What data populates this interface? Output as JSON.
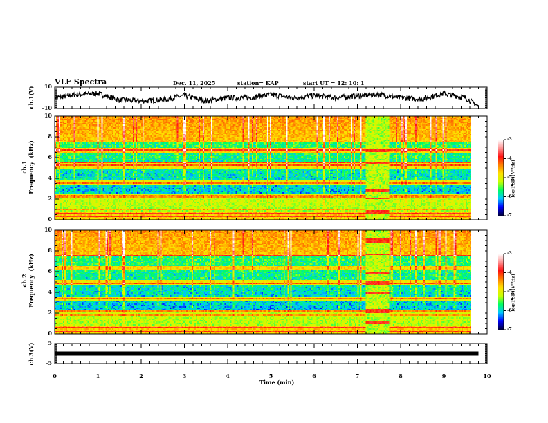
{
  "header": {
    "title": "VLF Spectra",
    "date": "Dec. 11, 2025",
    "station": "station= KAP",
    "start": "start  UT  =   12: 10: 1"
  },
  "chart_data": [
    {
      "type": "line",
      "name": "ch1-waveform",
      "ylabel": "ch.1(V)",
      "ylim": [
        -10,
        10
      ],
      "ytick_labels": [
        "10",
        "-10"
      ],
      "xlim": [
        0,
        10
      ],
      "data_end_min": 9.8,
      "description": "noisy voltage trace, mostly between -5 and 5 V",
      "x": [
        0,
        0.5,
        1,
        1.5,
        2,
        2.5,
        3,
        3.5,
        4,
        4.5,
        5,
        5.5,
        6,
        6.5,
        7,
        7.5,
        8,
        8.5,
        9,
        9.5,
        9.8
      ],
      "y": [
        0,
        3,
        4,
        -2,
        -3,
        -2,
        2,
        -3,
        0,
        0,
        3,
        0,
        2,
        0,
        2,
        3,
        0,
        -1,
        4,
        0,
        -8
      ]
    },
    {
      "type": "heatmap",
      "name": "ch1-spectrogram",
      "ylabel": "ch.1\nFrequency  (kHz)",
      "ylim": [
        0,
        10
      ],
      "ytick_labels": [
        "0",
        "2",
        "4",
        "6",
        "8",
        "10"
      ],
      "xlim": [
        0,
        10
      ],
      "data_end_min": 9.8,
      "colorbar": {
        "label": "log(PSD)(V²/Hz)",
        "range": [
          -7,
          -3
        ],
        "tick_labels": [
          "-3",
          "-4",
          "-5",
          "-6",
          "-7"
        ],
        "colormap": [
          "#000040",
          "#0000ff",
          "#00c8ff",
          "#00ff60",
          "#c8ff00",
          "#ffe000",
          "#ff8000",
          "#ff1010",
          "#ff9090",
          "#ffffff"
        ]
      },
      "features": {
        "quiet_bands_khz": [
          [
            3.9,
            4.9
          ],
          [
            2.5,
            3.3
          ],
          [
            5.6,
            6.4
          ],
          [
            7.0,
            7.5
          ]
        ],
        "line_emissions_khz": [
          0.3,
          0.6,
          1.0,
          2.1,
          2.3,
          3.5,
          5.3,
          5.5,
          6.8
        ],
        "burst_interval_min": [
          7.3,
          7.85
        ],
        "burst_bands_khz": [
          [
            6.6,
            6.8
          ],
          [
            5.3,
            5.6
          ],
          [
            2.6,
            2.9
          ],
          [
            1.9,
            2.1
          ],
          [
            0.5,
            0.9
          ]
        ]
      }
    },
    {
      "type": "heatmap",
      "name": "ch2-spectrogram",
      "ylabel": "ch.2\nFrequency  (kHz)",
      "ylim": [
        0,
        10
      ],
      "ytick_labels": [
        "0",
        "2",
        "4",
        "6",
        "8",
        "10"
      ],
      "xlim": [
        0,
        10
      ],
      "data_end_min": 9.8,
      "colorbar": {
        "label": "log(PSD)(V²/Hz)",
        "range": [
          -7,
          -3
        ],
        "tick_labels": [
          "-3",
          "-4",
          "-5",
          "-6",
          "-7"
        ],
        "colormap": [
          "#000040",
          "#0000ff",
          "#00c8ff",
          "#00ff60",
          "#c8ff00",
          "#ffe000",
          "#ff8000",
          "#ff1010",
          "#ff9090",
          "#ffffff"
        ]
      },
      "features": {
        "quiet_bands_khz": [
          [
            2.2,
            3.2
          ],
          [
            3.6,
            4.6
          ],
          [
            5.2,
            6.2
          ],
          [
            6.6,
            7.5
          ]
        ],
        "line_emissions_khz": [
          0.2,
          0.5,
          1.7,
          2.2,
          3.4,
          4.8,
          7.6
        ],
        "burst_interval_min": [
          7.3,
          7.85
        ],
        "burst_bands_khz": [
          [
            8.9,
            9.2
          ],
          [
            7.6,
            7.8
          ],
          [
            5.8,
            6.0
          ],
          [
            4.6,
            5.0
          ],
          [
            3.8,
            4.0
          ],
          [
            2.0,
            2.3
          ],
          [
            0.9,
            1.1
          ]
        ]
      }
    },
    {
      "type": "line",
      "name": "ch3-waveform",
      "ylabel": "ch.3(V)",
      "ylim": [
        -5,
        5
      ],
      "ytick_labels": [
        "5",
        "-5"
      ],
      "xlim": [
        0,
        10
      ],
      "data_end_min": 9.8,
      "description": "flat thick trace near 0 V",
      "x": [
        0,
        9.8
      ],
      "y": [
        0,
        0
      ]
    }
  ],
  "xaxis": {
    "label": "Time  (min)",
    "tick_labels": [
      "0",
      "1",
      "2",
      "3",
      "4",
      "5",
      "6",
      "7",
      "8",
      "9",
      "10"
    ]
  }
}
